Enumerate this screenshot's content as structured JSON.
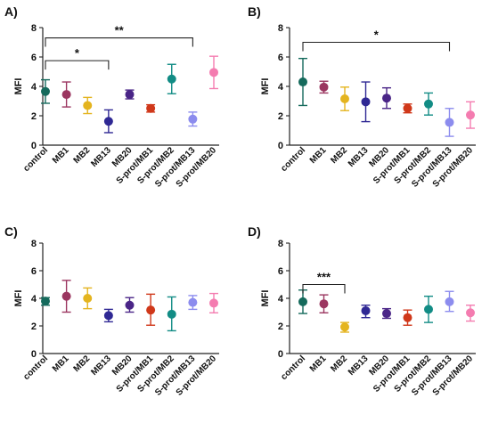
{
  "chart_data": [
    {
      "panel": "A)",
      "type": "scatter",
      "ylabel": "MFI",
      "ylim": [
        0,
        8
      ],
      "yticks": [
        "0",
        "2",
        "4",
        "6",
        "8"
      ],
      "categories": [
        "control",
        "MB1",
        "MB2",
        "MB13",
        "MB20",
        "S-prot/MB1",
        "S-prot/MB2",
        "S-prot/MB13",
        "S-prot/MB20"
      ],
      "means": [
        3.65,
        3.45,
        2.7,
        1.62,
        3.45,
        2.5,
        4.5,
        1.77,
        4.95
      ],
      "errors": [
        [
          2.85,
          4.45
        ],
        [
          2.6,
          4.3
        ],
        [
          2.15,
          3.25
        ],
        [
          0.85,
          2.4
        ],
        [
          3.15,
          3.75
        ],
        [
          2.25,
          2.75
        ],
        [
          3.5,
          5.5
        ],
        [
          1.3,
          2.25
        ],
        [
          3.85,
          6.05
        ]
      ],
      "colors": [
        "#156a5c",
        "#9b3660",
        "#e4b41f",
        "#2f2894",
        "#4a2587",
        "#d0381a",
        "#128c85",
        "#8c8cee",
        "#f47cb0"
      ],
      "significance": [
        {
          "from": 0,
          "to": 3,
          "label": "*",
          "y": 5.75
        },
        {
          "from": 0,
          "to": 7,
          "label": "**",
          "y": 7.3
        }
      ]
    },
    {
      "panel": "B)",
      "type": "scatter",
      "ylabel": "MFI",
      "ylim": [
        0,
        8
      ],
      "yticks": [
        "0",
        "2",
        "4",
        "6",
        "8"
      ],
      "categories": [
        "control",
        "MB1",
        "MB2",
        "MB13",
        "MB20",
        "S-prot/MB1",
        "S-prot/MB2",
        "S-prot/MB13",
        "S-prot/MB20"
      ],
      "means": [
        4.3,
        3.95,
        3.15,
        2.95,
        3.2,
        2.5,
        2.8,
        1.55,
        2.05
      ],
      "errors": [
        [
          2.7,
          5.9
        ],
        [
          3.55,
          4.35
        ],
        [
          2.35,
          3.95
        ],
        [
          1.6,
          4.3
        ],
        [
          2.5,
          3.9
        ],
        [
          2.2,
          2.8
        ],
        [
          2.05,
          3.55
        ],
        [
          0.6,
          2.5
        ],
        [
          1.15,
          2.95
        ]
      ],
      "colors": [
        "#156a5c",
        "#9b3660",
        "#e4b41f",
        "#2f2894",
        "#4a2587",
        "#d0381a",
        "#128c85",
        "#8c8cee",
        "#f47cb0"
      ],
      "significance": [
        {
          "from": 0,
          "to": 7,
          "label": "*",
          "y": 7.0
        }
      ]
    },
    {
      "panel": "C)",
      "type": "scatter",
      "ylabel": "MFI",
      "ylim": [
        0,
        8
      ],
      "yticks": [
        "0",
        "2",
        "4",
        "6",
        "8"
      ],
      "categories": [
        "control",
        "MB1",
        "MB2",
        "MB13",
        "MB20",
        "S-prot/MB1",
        "S-prot/MB2",
        "S-prot/MB13",
        "S-prot/MB20"
      ],
      "means": [
        3.8,
        4.15,
        4.0,
        2.75,
        3.5,
        3.15,
        2.85,
        3.7,
        3.65
      ],
      "errors": [
        [
          3.5,
          4.05
        ],
        [
          3.0,
          5.3
        ],
        [
          3.25,
          4.75
        ],
        [
          2.3,
          3.2
        ],
        [
          3.0,
          4.05
        ],
        [
          2.05,
          4.3
        ],
        [
          1.65,
          4.1
        ],
        [
          3.2,
          4.2
        ],
        [
          2.95,
          4.35
        ]
      ],
      "colors": [
        "#156a5c",
        "#9b3660",
        "#e4b41f",
        "#2f2894",
        "#4a2587",
        "#d0381a",
        "#128c85",
        "#8c8cee",
        "#f47cb0"
      ],
      "significance": []
    },
    {
      "panel": "D)",
      "type": "scatter",
      "ylabel": "MFI",
      "ylim": [
        0,
        8
      ],
      "yticks": [
        "0",
        "2",
        "4",
        "6",
        "8"
      ],
      "categories": [
        "control",
        "MB1",
        "MB2",
        "MB13",
        "MB20",
        "S-prot/MB1",
        "S-prot/MB2",
        "S-prot/MB13",
        "S-prot/MB20"
      ],
      "means": [
        3.75,
        3.6,
        1.92,
        3.1,
        2.9,
        2.6,
        3.2,
        3.75,
        2.95
      ],
      "errors": [
        [
          2.9,
          4.6
        ],
        [
          2.95,
          4.25
        ],
        [
          1.55,
          2.25
        ],
        [
          2.6,
          3.5
        ],
        [
          2.55,
          3.25
        ],
        [
          2.05,
          3.15
        ],
        [
          2.25,
          4.15
        ],
        [
          3.05,
          4.5
        ],
        [
          2.35,
          3.5
        ]
      ],
      "colors": [
        "#156a5c",
        "#9b3660",
        "#e4b41f",
        "#2f2894",
        "#4a2587",
        "#d0381a",
        "#128c85",
        "#8c8cee",
        "#f47cb0"
      ],
      "significance": [
        {
          "from": 0,
          "to": 2,
          "label": "***",
          "y": 5.0
        }
      ]
    }
  ]
}
